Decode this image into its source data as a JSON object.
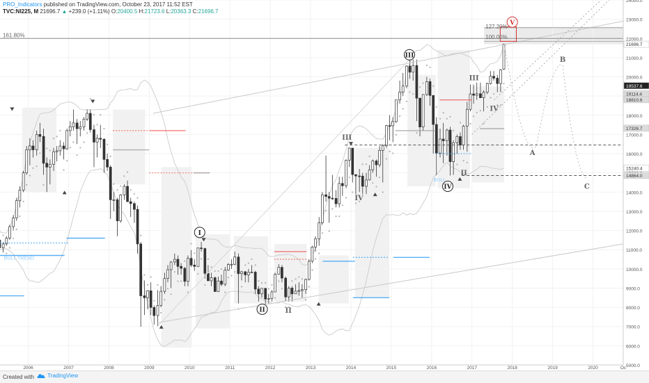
{
  "header": {
    "author": "PRO_Indicators",
    "published": "published on TradingView.com, October 23, 2017 11:52 EST",
    "symbol": "TVC:NI225, M",
    "last": "21696.7",
    "change": "+239.0 (+1.11%)",
    "o_label": "O:",
    "o_value": "20400.5",
    "h_label": "H:",
    "h_value": "21723.6",
    "l_label": "L:",
    "l_value": "20363.3",
    "c_label": "C:",
    "c_value": "21696.7"
  },
  "footer": {
    "created": "Created with",
    "brand": "TradingView",
    "logo_icon": "tradingview-cloud-icon"
  },
  "colors": {
    "up": "#26a69a",
    "down": "#333333",
    "accent": "#2196f3",
    "fib": "#d32f2f"
  },
  "chart_data": {
    "type": "candlestick",
    "ylim": [
      5000,
      24000
    ],
    "xlim": [
      2005.3,
      2020.75
    ],
    "x_ticks": [
      {
        "x": 2006,
        "label": "2006"
      },
      {
        "x": 2007,
        "label": "2007"
      },
      {
        "x": 2008,
        "label": "2008"
      },
      {
        "x": 2009,
        "label": "2009"
      },
      {
        "x": 2010,
        "label": "2010"
      },
      {
        "x": 2011,
        "label": "2011"
      },
      {
        "x": 2012,
        "label": "2012"
      },
      {
        "x": 2013,
        "label": "2013"
      },
      {
        "x": 2014,
        "label": "2014"
      },
      {
        "x": 2015,
        "label": "2015"
      },
      {
        "x": 2016,
        "label": "2016"
      },
      {
        "x": 2017,
        "label": "2017"
      },
      {
        "x": 2018,
        "label": "2018"
      },
      {
        "x": 2019,
        "label": "2019"
      },
      {
        "x": 2020,
        "label": "2020"
      },
      {
        "x": 2020.75,
        "label": "Oc"
      }
    ],
    "y_ticks": [
      "5000.0",
      "6000.0",
      "7000.0",
      "8000.0",
      "9000.0",
      "10000.0",
      "11000.0",
      "12000.0",
      "13000.0",
      "14000.0",
      "15000.0",
      "16000.0",
      "17000.0",
      "18000.0",
      "19000.0",
      "20000.0",
      "21000.0",
      "22000.0",
      "23000.0",
      "24000.0"
    ],
    "price_badges": [
      {
        "y": 21696.7,
        "label": "21696.7",
        "style": "white"
      },
      {
        "y": 19537.6,
        "label": "19537.6",
        "style": "dark"
      },
      {
        "y": 19114.4,
        "label": "19114.4",
        "style": "gray"
      },
      {
        "y": 18810.6,
        "label": "18810.6",
        "style": "gray"
      },
      {
        "y": 17326.7,
        "label": "17326.7",
        "style": "gray"
      },
      {
        "y": 15240.4,
        "label": "15240.4",
        "style": "white"
      },
      {
        "y": 14864.0,
        "label": "14864.0",
        "style": "gray"
      }
    ],
    "fib_labels": [
      {
        "x": 2004.9,
        "y": 22000,
        "label": "161.80%"
      },
      {
        "x": 2017.3,
        "y": 22450,
        "label": "127.20%"
      },
      {
        "x": 2017.3,
        "y": 21900,
        "label": "100.00%"
      }
    ],
    "wave_labels": [
      {
        "x": 2010.25,
        "y": 11900,
        "label": "I",
        "circled": true
      },
      {
        "x": 2011.8,
        "y": 7900,
        "label": "II",
        "circled": true
      },
      {
        "x": 2015.45,
        "y": 21150,
        "label": "III",
        "circled": true
      },
      {
        "x": 2016.4,
        "y": 14300,
        "label": "IV",
        "circled": true
      },
      {
        "x": 2018.0,
        "y": 22850,
        "label": "V",
        "circled": true,
        "color": "#d32f2f"
      },
      {
        "x": 2013.9,
        "y": 16850,
        "label": "III",
        "circled": false
      },
      {
        "x": 2012.45,
        "y": 7850,
        "label": "II",
        "circled": false
      },
      {
        "x": 2014.2,
        "y": 13700,
        "label": "IV",
        "circled": false
      },
      {
        "x": 2017.05,
        "y": 19950,
        "label": "III",
        "circled": false
      },
      {
        "x": 2016.8,
        "y": 15000,
        "label": "II",
        "circled": false
      },
      {
        "x": 2017.55,
        "y": 18350,
        "label": "IV",
        "circled": false
      },
      {
        "x": 2019.25,
        "y": 20900,
        "label": "B",
        "circled": false
      },
      {
        "x": 2018.5,
        "y": 16050,
        "label": "A",
        "circled": false
      },
      {
        "x": 2019.85,
        "y": 14300,
        "label": "C",
        "circled": false
      }
    ],
    "annotations": [
      {
        "x": 2005.4,
        "y": 10480,
        "label": "BULL TREND"
      },
      {
        "x": 2016.05,
        "y": 14550,
        "label": "BULL"
      }
    ],
    "candles": [
      [
        2005.04,
        11500,
        11700,
        11200,
        11600
      ],
      [
        2005.12,
        11600,
        11900,
        11400,
        11700
      ],
      [
        2005.21,
        11700,
        11900,
        11300,
        11500
      ],
      [
        2005.29,
        11500,
        11600,
        10900,
        11100
      ],
      [
        2005.38,
        11100,
        11400,
        10850,
        11300
      ],
      [
        2005.46,
        11300,
        11700,
        11200,
        11600
      ],
      [
        2005.54,
        11600,
        12300,
        11500,
        12200
      ],
      [
        2005.63,
        12200,
        12800,
        12000,
        12650
      ],
      [
        2005.71,
        12650,
        13700,
        12500,
        13550
      ],
      [
        2005.79,
        13550,
        14300,
        13200,
        14100
      ],
      [
        2005.88,
        14100,
        15100,
        14000,
        15000
      ],
      [
        2005.96,
        15000,
        16400,
        14900,
        16200
      ],
      [
        2006.04,
        16200,
        16800,
        15400,
        16400
      ],
      [
        2006.12,
        16400,
        16700,
        15800,
        16200
      ],
      [
        2006.21,
        16200,
        17200,
        15900,
        17000
      ],
      [
        2006.29,
        17000,
        17600,
        16600,
        16900
      ],
      [
        2006.38,
        16900,
        17300,
        14900,
        15500
      ],
      [
        2006.46,
        15500,
        15800,
        14000,
        15300
      ],
      [
        2006.54,
        15300,
        15700,
        14400,
        15450
      ],
      [
        2006.63,
        15450,
        16300,
        15100,
        16100
      ],
      [
        2006.71,
        16100,
        16400,
        15600,
        16150
      ],
      [
        2006.79,
        16150,
        16700,
        15900,
        16400
      ],
      [
        2006.88,
        16400,
        16600,
        15700,
        16250
      ],
      [
        2006.96,
        16250,
        17300,
        16200,
        17200
      ],
      [
        2007.04,
        17200,
        17700,
        16900,
        17400
      ],
      [
        2007.12,
        17400,
        18300,
        17200,
        17600
      ],
      [
        2007.21,
        17600,
        17800,
        16500,
        17300
      ],
      [
        2007.29,
        17300,
        17700,
        16900,
        17400
      ],
      [
        2007.38,
        17400,
        17900,
        17200,
        17800
      ],
      [
        2007.46,
        17800,
        18300,
        17700,
        18100
      ],
      [
        2007.54,
        18100,
        18300,
        17100,
        17250
      ],
      [
        2007.63,
        17250,
        17500,
        15300,
        16600
      ],
      [
        2007.71,
        16600,
        17000,
        15800,
        16800
      ],
      [
        2007.79,
        16800,
        17500,
        16300,
        16750
      ],
      [
        2007.88,
        16750,
        16800,
        15000,
        15700
      ],
      [
        2007.96,
        15700,
        16000,
        15100,
        15300
      ],
      [
        2008.04,
        15300,
        15400,
        12600,
        13600
      ],
      [
        2008.12,
        13600,
        14000,
        13000,
        13600
      ],
      [
        2008.21,
        13600,
        13700,
        11700,
        12500
      ],
      [
        2008.29,
        12500,
        13900,
        12400,
        13850
      ],
      [
        2008.38,
        13850,
        14400,
        13600,
        14300
      ],
      [
        2008.46,
        14300,
        14600,
        13500,
        13500
      ],
      [
        2008.54,
        13500,
        13700,
        12700,
        13400
      ],
      [
        2008.63,
        13400,
        13500,
        12400,
        13100
      ],
      [
        2008.71,
        13100,
        13300,
        10800,
        11300
      ],
      [
        2008.79,
        11300,
        11400,
        6990,
        8600
      ],
      [
        2008.88,
        8600,
        9400,
        7600,
        8500
      ],
      [
        2008.96,
        8500,
        8900,
        7900,
        8860
      ],
      [
        2009.04,
        8860,
        9300,
        7600,
        7990
      ],
      [
        2009.12,
        7990,
        8100,
        7100,
        7570
      ],
      [
        2009.21,
        7570,
        8900,
        7000,
        8100
      ],
      [
        2009.29,
        8100,
        9100,
        8000,
        8830
      ],
      [
        2009.38,
        8830,
        9800,
        8700,
        9500
      ],
      [
        2009.46,
        9500,
        10200,
        9300,
        9960
      ],
      [
        2009.54,
        9960,
        10400,
        9000,
        10360
      ],
      [
        2009.63,
        10360,
        10800,
        10200,
        10500
      ],
      [
        2009.71,
        10500,
        10700,
        9700,
        10130
      ],
      [
        2009.79,
        10130,
        10300,
        9700,
        10030
      ],
      [
        2009.88,
        10030,
        10100,
        9100,
        9350
      ],
      [
        2009.96,
        9350,
        10700,
        9100,
        10550
      ],
      [
        2010.04,
        10550,
        10980,
        10100,
        10200
      ],
      [
        2010.12,
        10200,
        10500,
        9900,
        10130
      ],
      [
        2010.21,
        10130,
        11100,
        10100,
        11090
      ],
      [
        2010.29,
        11090,
        11400,
        10900,
        11060
      ],
      [
        2010.38,
        11060,
        11100,
        9500,
        9770
      ],
      [
        2010.46,
        9770,
        10200,
        9400,
        9380
      ],
      [
        2010.54,
        9380,
        9800,
        9100,
        9540
      ],
      [
        2010.63,
        9540,
        9600,
        8800,
        8820
      ],
      [
        2010.71,
        8820,
        9600,
        8800,
        9370
      ],
      [
        2010.79,
        9370,
        9700,
        9100,
        9200
      ],
      [
        2010.88,
        9200,
        10100,
        9100,
        9940
      ],
      [
        2010.96,
        9940,
        10300,
        9900,
        10230
      ],
      [
        2011.04,
        10230,
        10500,
        10000,
        10240
      ],
      [
        2011.12,
        10240,
        10900,
        10200,
        10620
      ],
      [
        2011.21,
        10620,
        10800,
        8200,
        9750
      ],
      [
        2011.29,
        9750,
        9900,
        9400,
        9850
      ],
      [
        2011.38,
        9850,
        9900,
        9300,
        9690
      ],
      [
        2011.46,
        9690,
        10000,
        9300,
        9820
      ],
      [
        2011.54,
        9820,
        10200,
        9800,
        9830
      ],
      [
        2011.63,
        9830,
        9900,
        8700,
        8950
      ],
      [
        2011.71,
        8950,
        9100,
        8300,
        8700
      ],
      [
        2011.79,
        8700,
        9000,
        8500,
        8990
      ],
      [
        2011.88,
        8990,
        9000,
        8100,
        8430
      ],
      [
        2011.96,
        8430,
        8700,
        8200,
        8460
      ],
      [
        2012.04,
        8460,
        8900,
        8300,
        8800
      ],
      [
        2012.12,
        8800,
        9800,
        8800,
        9720
      ],
      [
        2012.21,
        9720,
        10250,
        9700,
        10080
      ],
      [
        2012.29,
        10080,
        10200,
        9300,
        9520
      ],
      [
        2012.38,
        9520,
        9600,
        8300,
        8540
      ],
      [
        2012.46,
        8540,
        9100,
        8300,
        9000
      ],
      [
        2012.54,
        9000,
        9100,
        8300,
        8700
      ],
      [
        2012.63,
        8700,
        9200,
        8700,
        8840
      ],
      [
        2012.71,
        8840,
        9300,
        8600,
        8870
      ],
      [
        2012.79,
        8870,
        9200,
        8500,
        8920
      ],
      [
        2012.88,
        8920,
        9500,
        8700,
        9450
      ],
      [
        2012.96,
        9450,
        10500,
        9400,
        10400
      ],
      [
        2013.04,
        10400,
        11200,
        10300,
        11140
      ],
      [
        2013.12,
        11140,
        11700,
        10900,
        11560
      ],
      [
        2013.21,
        11560,
        12700,
        11200,
        12400
      ],
      [
        2013.29,
        12400,
        14000,
        12300,
        13860
      ],
      [
        2013.38,
        13860,
        15900,
        13500,
        13770
      ],
      [
        2013.46,
        13770,
        14000,
        12400,
        13680
      ],
      [
        2013.54,
        13680,
        14900,
        13600,
        13670
      ],
      [
        2013.63,
        13670,
        14100,
        13200,
        13390
      ],
      [
        2013.71,
        13390,
        14800,
        13200,
        14450
      ],
      [
        2013.79,
        14450,
        14800,
        13800,
        14330
      ],
      [
        2013.88,
        14330,
        15700,
        14200,
        15660
      ],
      [
        2013.96,
        15660,
        16320,
        15300,
        16290
      ],
      [
        2014.04,
        16290,
        16300,
        14500,
        14910
      ],
      [
        2014.12,
        14910,
        14900,
        13900,
        14840
      ],
      [
        2014.21,
        14840,
        15200,
        14000,
        14830
      ],
      [
        2014.29,
        14830,
        15000,
        13900,
        14300
      ],
      [
        2014.38,
        14300,
        15000,
        13900,
        14630
      ],
      [
        2014.46,
        14630,
        15400,
        14600,
        15160
      ],
      [
        2014.54,
        15160,
        15700,
        15000,
        15620
      ],
      [
        2014.63,
        15620,
        15700,
        14800,
        15420
      ],
      [
        2014.71,
        15420,
        16400,
        15300,
        16170
      ],
      [
        2014.79,
        16170,
        16500,
        14500,
        16410
      ],
      [
        2014.88,
        16410,
        17500,
        16300,
        17460
      ],
      [
        2014.96,
        17460,
        18000,
        16700,
        17450
      ],
      [
        2015.04,
        17450,
        17900,
        16600,
        17670
      ],
      [
        2015.12,
        17670,
        18800,
        17600,
        18800
      ],
      [
        2015.21,
        18800,
        19800,
        18600,
        19200
      ],
      [
        2015.29,
        19200,
        20200,
        19000,
        19520
      ],
      [
        2015.38,
        19520,
        20600,
        19400,
        20560
      ],
      [
        2015.46,
        20560,
        20900,
        19900,
        20240
      ],
      [
        2015.54,
        20240,
        20900,
        19800,
        20590
      ],
      [
        2015.63,
        20590,
        20900,
        17700,
        18890
      ],
      [
        2015.71,
        18890,
        18900,
        16900,
        17390
      ],
      [
        2015.79,
        17390,
        19100,
        17200,
        19080
      ],
      [
        2015.88,
        19080,
        20000,
        19000,
        19750
      ],
      [
        2015.96,
        19750,
        19900,
        18500,
        19030
      ],
      [
        2016.04,
        19030,
        18950,
        16000,
        17520
      ],
      [
        2016.12,
        17520,
        17900,
        14870,
        16030
      ],
      [
        2016.21,
        16030,
        17300,
        15800,
        16760
      ],
      [
        2016.29,
        16760,
        17600,
        15500,
        16670
      ],
      [
        2016.38,
        16670,
        17300,
        15900,
        17230
      ],
      [
        2016.46,
        17230,
        17400,
        14860,
        15580
      ],
      [
        2016.54,
        15580,
        16700,
        14900,
        16570
      ],
      [
        2016.63,
        16570,
        17000,
        16000,
        16890
      ],
      [
        2016.71,
        16890,
        17100,
        16200,
        16450
      ],
      [
        2016.79,
        16450,
        17500,
        16200,
        17430
      ],
      [
        2016.88,
        17430,
        18700,
        16100,
        18310
      ],
      [
        2016.96,
        18310,
        19600,
        18200,
        19110
      ],
      [
        2017.04,
        19110,
        19600,
        18600,
        19040
      ],
      [
        2017.12,
        19040,
        19700,
        18800,
        19120
      ],
      [
        2017.21,
        19120,
        19700,
        18900,
        18910
      ],
      [
        2017.29,
        18910,
        19300,
        18200,
        19200
      ],
      [
        2017.38,
        19200,
        19700,
        19100,
        19650
      ],
      [
        2017.46,
        19650,
        20300,
        19600,
        20030
      ],
      [
        2017.54,
        20030,
        20300,
        19800,
        19930
      ],
      [
        2017.63,
        19930,
        20100,
        19200,
        19650
      ],
      [
        2017.71,
        19650,
        20400,
        19200,
        20360
      ],
      [
        2017.79,
        20400,
        21724,
        20363,
        21697
      ]
    ]
  }
}
